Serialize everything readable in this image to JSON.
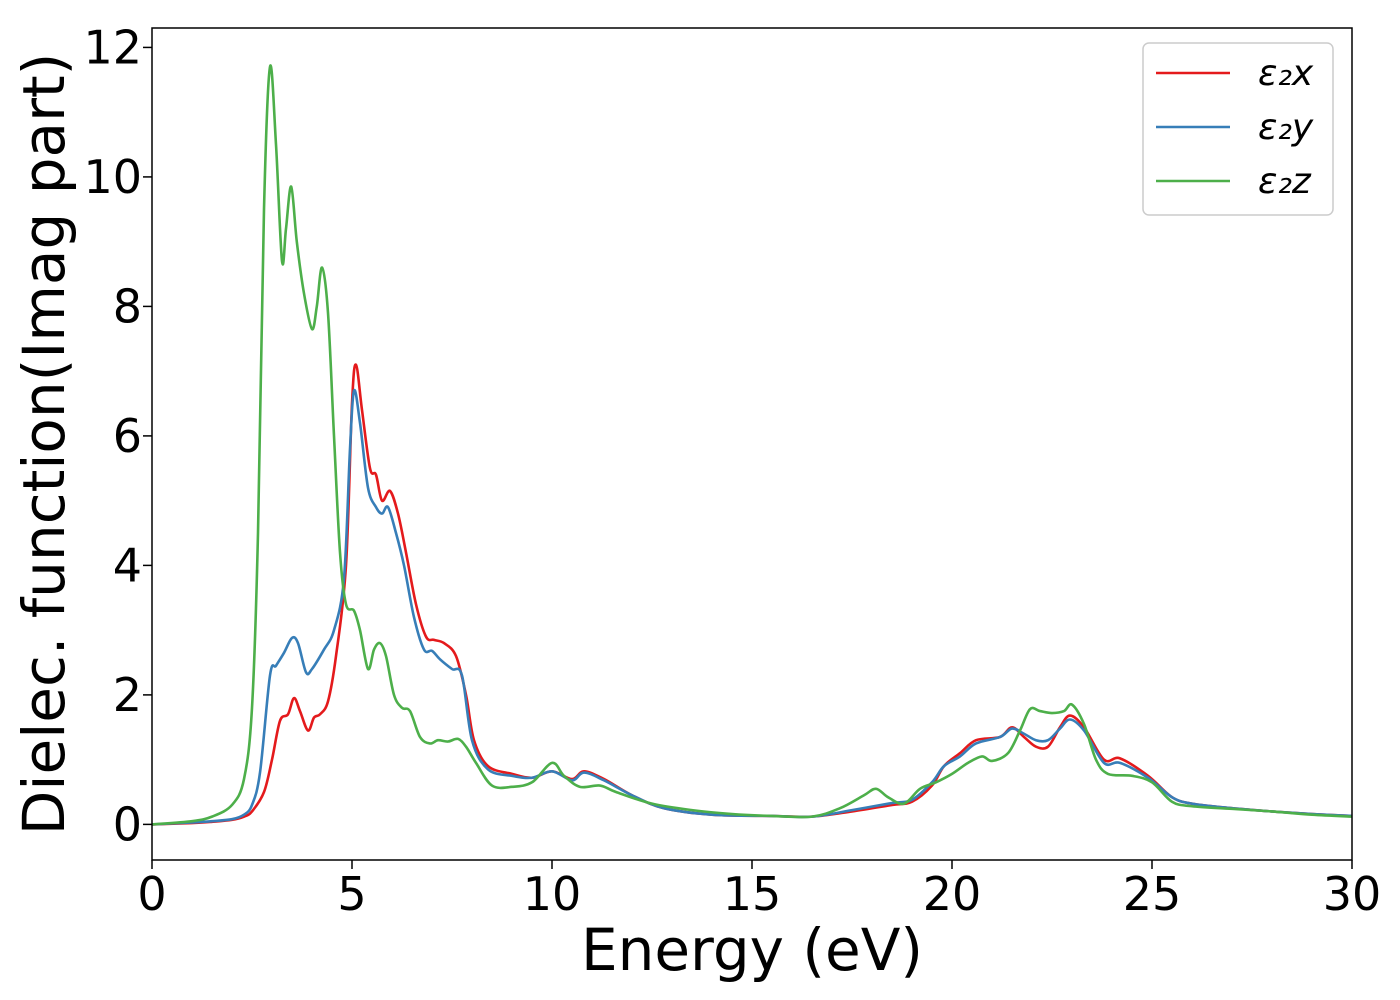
{
  "chart_data": {
    "type": "line",
    "title": "",
    "xlabel": "Energy (eV)",
    "ylabel": "Dielec. function(Imag part)",
    "xlim": [
      0,
      30
    ],
    "ylim": [
      -0.55,
      12.3
    ],
    "xticks": [
      0,
      5,
      10,
      15,
      20,
      25,
      30
    ],
    "xtick_labels": [
      "0",
      "5",
      "10",
      "15",
      "20",
      "25",
      "30"
    ],
    "yticks": [
      0,
      2,
      4,
      6,
      8,
      10,
      12
    ],
    "ytick_labels": [
      "0",
      "2",
      "4",
      "6",
      "8",
      "10",
      "12"
    ],
    "grid": false,
    "legend_position": "top-right",
    "series": [
      {
        "name": "ε₂x",
        "color": "#e41a1c",
        "points": [
          [
            0,
            0.0
          ],
          [
            1,
            0.02
          ],
          [
            1.5,
            0.04
          ],
          [
            2,
            0.07
          ],
          [
            2.3,
            0.12
          ],
          [
            2.5,
            0.2
          ],
          [
            2.8,
            0.5
          ],
          [
            3.0,
            1.0
          ],
          [
            3.2,
            1.6
          ],
          [
            3.4,
            1.7
          ],
          [
            3.55,
            1.95
          ],
          [
            3.7,
            1.75
          ],
          [
            3.9,
            1.45
          ],
          [
            4.05,
            1.65
          ],
          [
            4.2,
            1.7
          ],
          [
            4.4,
            1.9
          ],
          [
            4.6,
            2.6
          ],
          [
            4.85,
            4.0
          ],
          [
            5.0,
            6.5
          ],
          [
            5.1,
            7.1
          ],
          [
            5.25,
            6.4
          ],
          [
            5.45,
            5.5
          ],
          [
            5.6,
            5.4
          ],
          [
            5.75,
            5.0
          ],
          [
            5.95,
            5.15
          ],
          [
            6.15,
            4.8
          ],
          [
            6.35,
            4.2
          ],
          [
            6.6,
            3.4
          ],
          [
            6.85,
            2.9
          ],
          [
            7.05,
            2.85
          ],
          [
            7.3,
            2.8
          ],
          [
            7.6,
            2.6
          ],
          [
            7.85,
            2.0
          ],
          [
            8.05,
            1.3
          ],
          [
            8.4,
            0.9
          ],
          [
            9.0,
            0.78
          ],
          [
            9.5,
            0.72
          ],
          [
            10.0,
            0.82
          ],
          [
            10.5,
            0.7
          ],
          [
            10.8,
            0.82
          ],
          [
            11.3,
            0.7
          ],
          [
            12.0,
            0.45
          ],
          [
            12.8,
            0.25
          ],
          [
            14.0,
            0.15
          ],
          [
            15.5,
            0.13
          ],
          [
            16.5,
            0.12
          ],
          [
            17.5,
            0.2
          ],
          [
            18.5,
            0.3
          ],
          [
            19.0,
            0.35
          ],
          [
            19.5,
            0.6
          ],
          [
            19.8,
            0.9
          ],
          [
            20.2,
            1.1
          ],
          [
            20.6,
            1.3
          ],
          [
            21.2,
            1.35
          ],
          [
            21.5,
            1.5
          ],
          [
            21.8,
            1.35
          ],
          [
            22.1,
            1.2
          ],
          [
            22.4,
            1.2
          ],
          [
            22.7,
            1.5
          ],
          [
            22.95,
            1.68
          ],
          [
            23.3,
            1.5
          ],
          [
            23.8,
            1.0
          ],
          [
            24.2,
            1.02
          ],
          [
            24.9,
            0.75
          ],
          [
            25.5,
            0.42
          ],
          [
            26.0,
            0.32
          ],
          [
            27.0,
            0.25
          ],
          [
            28.0,
            0.2
          ],
          [
            29.0,
            0.16
          ],
          [
            30.0,
            0.13
          ]
        ]
      },
      {
        "name": "ε₂y",
        "color": "#377eb8",
        "points": [
          [
            0,
            0.0
          ],
          [
            1,
            0.03
          ],
          [
            1.5,
            0.05
          ],
          [
            2,
            0.08
          ],
          [
            2.3,
            0.15
          ],
          [
            2.5,
            0.3
          ],
          [
            2.7,
            0.8
          ],
          [
            2.95,
            2.3
          ],
          [
            3.1,
            2.45
          ],
          [
            3.3,
            2.65
          ],
          [
            3.5,
            2.88
          ],
          [
            3.65,
            2.8
          ],
          [
            3.85,
            2.35
          ],
          [
            4.0,
            2.4
          ],
          [
            4.3,
            2.7
          ],
          [
            4.55,
            3.0
          ],
          [
            4.8,
            3.8
          ],
          [
            4.95,
            5.8
          ],
          [
            5.05,
            6.7
          ],
          [
            5.2,
            6.2
          ],
          [
            5.4,
            5.2
          ],
          [
            5.6,
            4.9
          ],
          [
            5.75,
            4.8
          ],
          [
            5.9,
            4.9
          ],
          [
            6.1,
            4.5
          ],
          [
            6.3,
            4.0
          ],
          [
            6.55,
            3.2
          ],
          [
            6.8,
            2.7
          ],
          [
            7.0,
            2.68
          ],
          [
            7.2,
            2.55
          ],
          [
            7.5,
            2.4
          ],
          [
            7.75,
            2.3
          ],
          [
            8.0,
            1.3
          ],
          [
            8.4,
            0.85
          ],
          [
            9.0,
            0.75
          ],
          [
            9.5,
            0.72
          ],
          [
            10.0,
            0.82
          ],
          [
            10.5,
            0.68
          ],
          [
            10.8,
            0.8
          ],
          [
            11.3,
            0.68
          ],
          [
            12.0,
            0.45
          ],
          [
            12.8,
            0.25
          ],
          [
            14.0,
            0.15
          ],
          [
            15.5,
            0.13
          ],
          [
            16.5,
            0.12
          ],
          [
            17.5,
            0.22
          ],
          [
            18.5,
            0.33
          ],
          [
            19.0,
            0.38
          ],
          [
            19.5,
            0.65
          ],
          [
            19.8,
            0.9
          ],
          [
            20.2,
            1.05
          ],
          [
            20.6,
            1.25
          ],
          [
            21.2,
            1.35
          ],
          [
            21.5,
            1.48
          ],
          [
            21.8,
            1.4
          ],
          [
            22.1,
            1.3
          ],
          [
            22.4,
            1.3
          ],
          [
            22.7,
            1.48
          ],
          [
            22.95,
            1.62
          ],
          [
            23.3,
            1.45
          ],
          [
            23.8,
            0.95
          ],
          [
            24.2,
            0.95
          ],
          [
            24.9,
            0.72
          ],
          [
            25.5,
            0.42
          ],
          [
            26.0,
            0.32
          ],
          [
            27.0,
            0.25
          ],
          [
            28.0,
            0.2
          ],
          [
            29.0,
            0.16
          ],
          [
            30.0,
            0.13
          ]
        ]
      },
      {
        "name": "ε₂z",
        "color": "#4daf4a",
        "points": [
          [
            0,
            0.0
          ],
          [
            1,
            0.05
          ],
          [
            1.5,
            0.12
          ],
          [
            2,
            0.3
          ],
          [
            2.3,
            0.7
          ],
          [
            2.5,
            1.8
          ],
          [
            2.65,
            4.5
          ],
          [
            2.8,
            9.5
          ],
          [
            2.95,
            11.7
          ],
          [
            3.1,
            10.5
          ],
          [
            3.25,
            8.7
          ],
          [
            3.35,
            9.2
          ],
          [
            3.48,
            9.85
          ],
          [
            3.62,
            9.0
          ],
          [
            3.8,
            8.2
          ],
          [
            4.0,
            7.65
          ],
          [
            4.12,
            8.0
          ],
          [
            4.25,
            8.6
          ],
          [
            4.4,
            7.9
          ],
          [
            4.55,
            6.0
          ],
          [
            4.7,
            4.2
          ],
          [
            4.85,
            3.4
          ],
          [
            5.05,
            3.3
          ],
          [
            5.2,
            3.0
          ],
          [
            5.4,
            2.4
          ],
          [
            5.55,
            2.7
          ],
          [
            5.7,
            2.8
          ],
          [
            5.85,
            2.6
          ],
          [
            6.05,
            2.0
          ],
          [
            6.25,
            1.8
          ],
          [
            6.45,
            1.75
          ],
          [
            6.7,
            1.35
          ],
          [
            6.95,
            1.25
          ],
          [
            7.15,
            1.3
          ],
          [
            7.4,
            1.28
          ],
          [
            7.65,
            1.32
          ],
          [
            7.85,
            1.2
          ],
          [
            8.1,
            0.95
          ],
          [
            8.5,
            0.6
          ],
          [
            9.0,
            0.58
          ],
          [
            9.5,
            0.65
          ],
          [
            10.0,
            0.95
          ],
          [
            10.3,
            0.75
          ],
          [
            10.7,
            0.58
          ],
          [
            11.2,
            0.6
          ],
          [
            11.6,
            0.5
          ],
          [
            12.5,
            0.32
          ],
          [
            13.5,
            0.22
          ],
          [
            14.5,
            0.16
          ],
          [
            15.5,
            0.13
          ],
          [
            16.5,
            0.12
          ],
          [
            17.2,
            0.25
          ],
          [
            17.8,
            0.45
          ],
          [
            18.1,
            0.55
          ],
          [
            18.4,
            0.42
          ],
          [
            18.8,
            0.32
          ],
          [
            19.2,
            0.55
          ],
          [
            19.6,
            0.65
          ],
          [
            20.0,
            0.78
          ],
          [
            20.4,
            0.95
          ],
          [
            20.75,
            1.05
          ],
          [
            21.0,
            0.98
          ],
          [
            21.4,
            1.1
          ],
          [
            21.7,
            1.45
          ],
          [
            21.95,
            1.78
          ],
          [
            22.2,
            1.75
          ],
          [
            22.5,
            1.72
          ],
          [
            22.8,
            1.75
          ],
          [
            23.0,
            1.85
          ],
          [
            23.3,
            1.55
          ],
          [
            23.6,
            1.0
          ],
          [
            23.9,
            0.78
          ],
          [
            24.5,
            0.75
          ],
          [
            25.0,
            0.65
          ],
          [
            25.5,
            0.35
          ],
          [
            26.0,
            0.28
          ],
          [
            27.0,
            0.24
          ],
          [
            28.0,
            0.2
          ],
          [
            29.0,
            0.15
          ],
          [
            30.0,
            0.12
          ]
        ]
      }
    ]
  }
}
